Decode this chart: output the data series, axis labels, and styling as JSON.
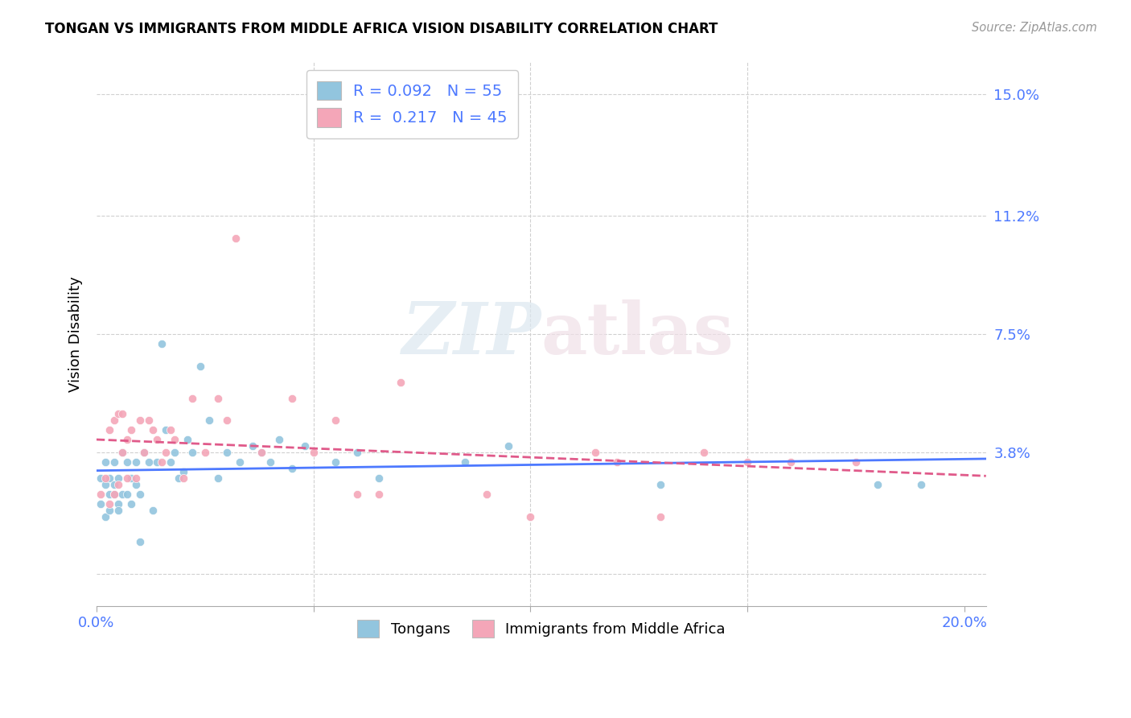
{
  "title": "TONGAN VS IMMIGRANTS FROM MIDDLE AFRICA VISION DISABILITY CORRELATION CHART",
  "source": "Source: ZipAtlas.com",
  "ylabel": "Vision Disability",
  "yticks": [
    0.0,
    0.038,
    0.075,
    0.112,
    0.15
  ],
  "ytick_labels": [
    "",
    "3.8%",
    "7.5%",
    "11.2%",
    "15.0%"
  ],
  "xlim": [
    0.0,
    0.205
  ],
  "ylim": [
    -0.01,
    0.16
  ],
  "legend1_R": "0.092",
  "legend1_N": "55",
  "legend2_R": "0.217",
  "legend2_N": "45",
  "blue_scatter_color": "#92c5de",
  "pink_scatter_color": "#f4a6b8",
  "blue_line_color": "#4d79ff",
  "pink_line_color": "#e05a8a",
  "axis_label_color": "#4d79ff",
  "grid_color": "#d0d0d0",
  "legend_label1": "Tongans",
  "legend_label2": "Immigrants from Middle Africa",
  "tongans_x": [
    0.001,
    0.001,
    0.002,
    0.002,
    0.002,
    0.003,
    0.003,
    0.003,
    0.004,
    0.004,
    0.004,
    0.005,
    0.005,
    0.005,
    0.006,
    0.006,
    0.007,
    0.007,
    0.008,
    0.008,
    0.009,
    0.009,
    0.01,
    0.01,
    0.011,
    0.012,
    0.013,
    0.014,
    0.015,
    0.016,
    0.017,
    0.018,
    0.019,
    0.02,
    0.021,
    0.022,
    0.024,
    0.026,
    0.028,
    0.03,
    0.033,
    0.036,
    0.038,
    0.04,
    0.042,
    0.045,
    0.048,
    0.055,
    0.06,
    0.065,
    0.085,
    0.095,
    0.13,
    0.18,
    0.19
  ],
  "tongans_y": [
    0.022,
    0.03,
    0.018,
    0.028,
    0.035,
    0.025,
    0.03,
    0.02,
    0.025,
    0.028,
    0.035,
    0.022,
    0.03,
    0.02,
    0.025,
    0.038,
    0.025,
    0.035,
    0.022,
    0.03,
    0.028,
    0.035,
    0.025,
    0.01,
    0.038,
    0.035,
    0.02,
    0.035,
    0.072,
    0.045,
    0.035,
    0.038,
    0.03,
    0.032,
    0.042,
    0.038,
    0.065,
    0.048,
    0.03,
    0.038,
    0.035,
    0.04,
    0.038,
    0.035,
    0.042,
    0.033,
    0.04,
    0.035,
    0.038,
    0.03,
    0.035,
    0.04,
    0.028,
    0.028,
    0.028
  ],
  "africa_x": [
    0.001,
    0.002,
    0.003,
    0.003,
    0.004,
    0.004,
    0.005,
    0.005,
    0.006,
    0.006,
    0.007,
    0.007,
    0.008,
    0.009,
    0.01,
    0.011,
    0.012,
    0.013,
    0.014,
    0.015,
    0.016,
    0.017,
    0.018,
    0.02,
    0.022,
    0.025,
    0.028,
    0.03,
    0.032,
    0.038,
    0.045,
    0.05,
    0.055,
    0.06,
    0.065,
    0.07,
    0.09,
    0.1,
    0.115,
    0.12,
    0.13,
    0.14,
    0.15,
    0.16,
    0.175
  ],
  "africa_y": [
    0.025,
    0.03,
    0.022,
    0.045,
    0.025,
    0.048,
    0.028,
    0.05,
    0.038,
    0.05,
    0.03,
    0.042,
    0.045,
    0.03,
    0.048,
    0.038,
    0.048,
    0.045,
    0.042,
    0.035,
    0.038,
    0.045,
    0.042,
    0.03,
    0.055,
    0.038,
    0.055,
    0.048,
    0.105,
    0.038,
    0.055,
    0.038,
    0.048,
    0.025,
    0.025,
    0.06,
    0.025,
    0.018,
    0.038,
    0.035,
    0.018,
    0.038,
    0.035,
    0.035,
    0.035
  ]
}
